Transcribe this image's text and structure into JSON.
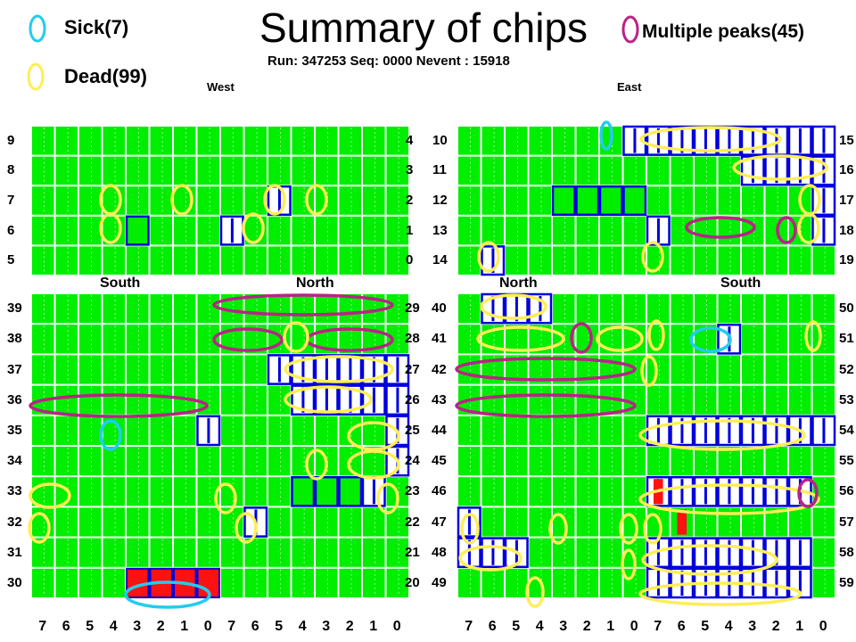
{
  "header": {
    "title": "Summary of chips",
    "run_info": "Run: 347253  Seq: 0000   Nevent : 15918"
  },
  "legend": [
    {
      "label": "Sick(7)",
      "color": "#22ccee"
    },
    {
      "label": "Dead(99)",
      "color": "#ffee55"
    },
    {
      "label": "Multiple peaks(45)",
      "color": "#bb2288"
    }
  ],
  "sides": {
    "west": "West",
    "east": "East"
  },
  "halves": {
    "south": "South",
    "north": "North"
  },
  "west_top_rows": [
    "9",
    "8",
    "7",
    "6",
    "5"
  ],
  "west_top_right": [
    "4",
    "3",
    "2",
    "1",
    "0"
  ],
  "east_top_rows": [
    "10",
    "11",
    "12",
    "13",
    "14"
  ],
  "east_top_right": [
    "15",
    "16",
    "17",
    "18",
    "19"
  ],
  "west_bottom_rows": [
    "39",
    "38",
    "37",
    "36",
    "35",
    "34",
    "33",
    "32",
    "31",
    "30"
  ],
  "west_bottom_right": [
    "29",
    "28",
    "27",
    "26",
    "25",
    "24",
    "23",
    "22",
    "21",
    "20"
  ],
  "east_bottom_rows": [
    "40",
    "41",
    "42",
    "43",
    "44",
    "45",
    "46",
    "47",
    "48",
    "49"
  ],
  "east_bottom_right": [
    "50",
    "51",
    "52",
    "53",
    "54",
    "55",
    "56",
    "57",
    "58",
    "59"
  ],
  "x_ticks": [
    "7",
    "6",
    "5",
    "4",
    "3",
    "2",
    "1",
    "0",
    "7",
    "6",
    "5",
    "4",
    "3",
    "2",
    "1",
    "0"
  ],
  "chart_data": {
    "type": "heatmap",
    "title": "Summary of chips",
    "colors": {
      "ok": "#00ee00",
      "sick": "#22ccee",
      "dead": "#ffee55",
      "multiple_peaks": "#bb2288",
      "noisy": "#ff1111",
      "flagged_border": "#0000dd"
    },
    "counts": {
      "sick": 7,
      "dead": 99,
      "multiple_peaks": 45
    }
  }
}
